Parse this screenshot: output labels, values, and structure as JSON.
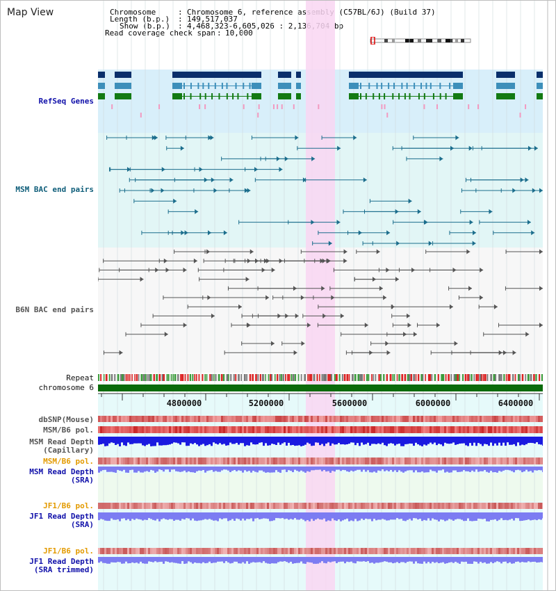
{
  "title": "Map View",
  "info": {
    "chromosome_key": "Chromosome",
    "chromosome_val": "Chromosome 6, reference assembly (C57BL/6J) (Build 37)",
    "length_key": "Length (b.p.)",
    "length_val": "149,517,037",
    "show_key": "Show (b.p.)",
    "show_val": "4,468,323-6,605,026 : 2,136,704 bp",
    "coverage_key": "Read coverage check span",
    "coverage_val": "10,000"
  },
  "tracks": {
    "refseq": "RefSeq Genes",
    "msm_bac": "MSM BAC end pairs",
    "b6n_bac": "B6N BAC end pairs",
    "repeat": "Repeat",
    "chromosome": "chromosome 6",
    "dbsnp": "dbSNP(Mouse)",
    "msm_b6_pol_1": "MSM/B6 pol.",
    "msm_read_depth_cap_1": "MSM Read Depth",
    "msm_read_depth_cap_2": "(Capillary)",
    "msm_b6_pol_2": "MSM/B6 pol.",
    "msm_read_depth_sra_1": "MSM Read Depth",
    "msm_read_depth_sra_2": "(SRA)",
    "jf1_b6_pol_1": "JF1/B6 pol.",
    "jf1_read_depth_sra_1": "JF1 Read Depth",
    "jf1_read_depth_sra_2": "(SRA)",
    "jf1_b6_pol_2": "JF1/B6 pol.",
    "jf1_read_depth_trim_1": "JF1 Read Depth",
    "jf1_read_depth_trim_2": "(SRA trimmed)"
  },
  "axis_ticks": [
    "4800000",
    "5200000",
    "5600000",
    "6000000",
    "6400000"
  ],
  "colors": {
    "highlight": "#f9d6f2",
    "refseq_bg": "#d8effa",
    "bac_bg": "#e2f6f6",
    "gene_dark": "#0a2f6b",
    "gene_mid": "#3d8fba",
    "gene_green": "#137a13",
    "chromosome_bar": "#0b6b0b",
    "depth_dark": "#1a1ae0",
    "depth_light": "#7c7cf2"
  }
}
